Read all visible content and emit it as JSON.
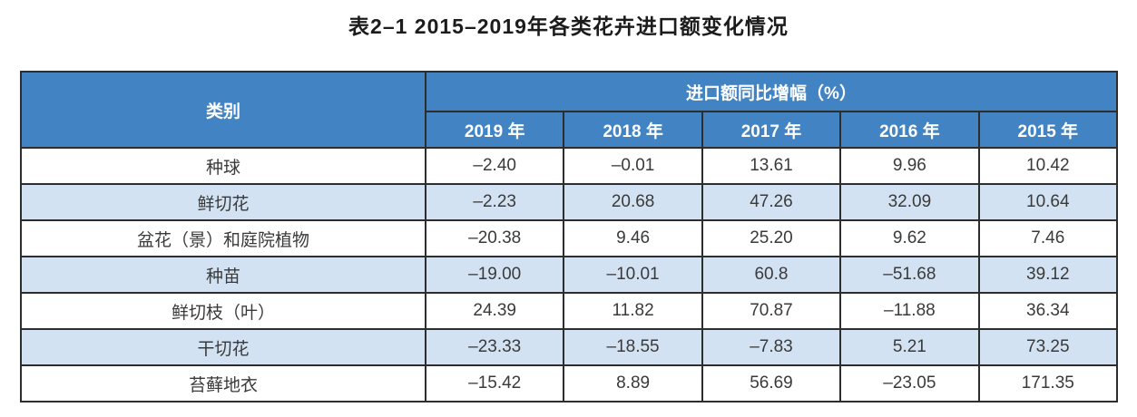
{
  "title": "表2–1 2015–2019年各类花卉进口额变化情况",
  "table": {
    "col1_header": "类别",
    "group_header": "进口额同比增幅（%）",
    "year_headers": [
      "2019 年",
      "2018 年",
      "2017 年",
      "2016 年",
      "2015 年"
    ],
    "rows": [
      {
        "category": "种球",
        "values": [
          "–2.40",
          "–0.01",
          "13.61",
          "9.96",
          "10.42"
        ]
      },
      {
        "category": "鲜切花",
        "values": [
          "–2.23",
          "20.68",
          "47.26",
          "32.09",
          "10.64"
        ]
      },
      {
        "category": "盆花（景）和庭院植物",
        "values": [
          "–20.38",
          "9.46",
          "25.20",
          "9.62",
          "7.46"
        ]
      },
      {
        "category": "种苗",
        "values": [
          "–19.00",
          "–10.01",
          "60.8",
          "–51.68",
          "39.12"
        ]
      },
      {
        "category": "鲜切枝（叶）",
        "values": [
          "24.39",
          "11.82",
          "70.87",
          "–11.88",
          "36.34"
        ]
      },
      {
        "category": "干切花",
        "values": [
          "–23.33",
          "–18.55",
          "–7.83",
          "5.21",
          "73.25"
        ]
      },
      {
        "category": "苔藓地衣",
        "values": [
          "–15.42",
          "8.89",
          "56.69",
          "–23.05",
          "171.35"
        ]
      }
    ],
    "colors": {
      "header_bg": "#4284c3",
      "alt_row_bg": "#d3e2f2",
      "header_text": "#ffffff",
      "body_text": "#3a3a3a",
      "border": "#2d2d2d"
    }
  },
  "chart_data": {
    "type": "table",
    "title": "表2–1 2015–2019年各类花卉进口额变化情况",
    "group_header": "进口额同比增幅（%）",
    "columns": [
      "类别",
      "2019 年",
      "2018 年",
      "2017 年",
      "2016 年",
      "2015 年"
    ],
    "rows": [
      [
        "种球",
        -2.4,
        -0.01,
        13.61,
        9.96,
        10.42
      ],
      [
        "鲜切花",
        -2.23,
        20.68,
        47.26,
        32.09,
        10.64
      ],
      [
        "盆花（景）和庭院植物",
        -20.38,
        9.46,
        25.2,
        9.62,
        7.46
      ],
      [
        "种苗",
        -19.0,
        -10.01,
        60.8,
        -51.68,
        39.12
      ],
      [
        "鲜切枝（叶）",
        24.39,
        11.82,
        70.87,
        -11.88,
        36.34
      ],
      [
        "干切花",
        -23.33,
        -18.55,
        -7.83,
        5.21,
        73.25
      ],
      [
        "苔藓地衣",
        -15.42,
        8.89,
        56.69,
        -23.05,
        171.35
      ]
    ]
  }
}
